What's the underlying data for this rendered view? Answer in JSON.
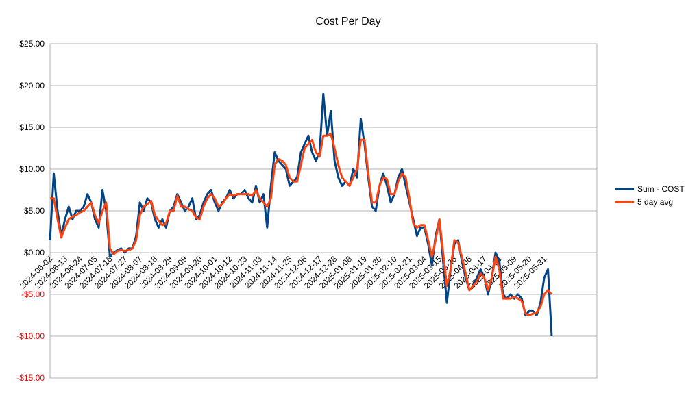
{
  "chart_data": {
    "type": "line",
    "title": "Cost Per Day",
    "categories": [
      "2024-06-02",
      null,
      null,
      null,
      "2024-06-13",
      null,
      null,
      null,
      "2024-06-24",
      null,
      null,
      null,
      "2024-07-05",
      null,
      null,
      null,
      "2024-07-16",
      null,
      null,
      null,
      "2024-07-27",
      null,
      null,
      null,
      "2024-08-07",
      null,
      null,
      null,
      "2024-08-18",
      null,
      null,
      null,
      "2024-08-29",
      null,
      null,
      null,
      "2024-09-09",
      null,
      null,
      null,
      "2024-09-20",
      null,
      null,
      null,
      "2024-10-01",
      null,
      null,
      null,
      "2024-10-12",
      null,
      null,
      null,
      "2024-10-23",
      null,
      null,
      null,
      "2024-11-03",
      null,
      null,
      null,
      "2024-11-14",
      null,
      null,
      null,
      "2024-11-25",
      null,
      null,
      null,
      "2024-12-06",
      null,
      null,
      null,
      "2024-12-17",
      null,
      null,
      null,
      "2024-12-28",
      null,
      null,
      null,
      "2025-01-08",
      null,
      null,
      null,
      "2025-01-19",
      null,
      null,
      null,
      "2025-01-30",
      null,
      null,
      null,
      "2025-02-10",
      null,
      null,
      null,
      "2025-02-21",
      null,
      null,
      null,
      "2025-03-04",
      null,
      null,
      null,
      "2025-03-15",
      null,
      null,
      null,
      "2025-03-26",
      null,
      null,
      null,
      "2025-04-06",
      null,
      null,
      null,
      "2025-04-17",
      null,
      null,
      null,
      "2025-04-28",
      null,
      null,
      null,
      "2025-05-09",
      null,
      null,
      null,
      "2025-05-20",
      null,
      null,
      null,
      "2025-05-31",
      null,
      null
    ],
    "series": [
      {
        "name": "Sum - COST",
        "color": "#004586",
        "width": 3,
        "values": [
          1.5,
          9.5,
          5,
          2,
          4,
          5.5,
          4,
          5,
          5,
          5.5,
          7,
          6,
          4,
          3,
          7.5,
          5,
          -0.5,
          0,
          0.3,
          0.5,
          0,
          0.5,
          0.5,
          2,
          6,
          5,
          6.5,
          6,
          4,
          3,
          4,
          3,
          5,
          5.5,
          7,
          6,
          5,
          5.5,
          6.5,
          4,
          4.5,
          6,
          7,
          7.5,
          6,
          5,
          6,
          6.5,
          7.5,
          6.5,
          7,
          7,
          7.5,
          6.5,
          6,
          8,
          6,
          7,
          3,
          8,
          12,
          11,
          10.5,
          10,
          8,
          8.5,
          9,
          12,
          13,
          14,
          12,
          11,
          12,
          19,
          14,
          17,
          11,
          9,
          8,
          8.5,
          8,
          10,
          9,
          16,
          13,
          9,
          5.5,
          5,
          8,
          9.5,
          8,
          6,
          7,
          9,
          10,
          8,
          6,
          4,
          2,
          3,
          3,
          1,
          -1.5,
          2,
          4,
          -1,
          -6,
          -2,
          1,
          1.5,
          -1,
          -3,
          -4.5,
          -4,
          -3,
          -2,
          -3,
          -5,
          -3,
          0,
          -1,
          -5,
          -5.5,
          -5,
          -5.5,
          -5,
          -5.5,
          -7.5,
          -7,
          -7,
          -7.5,
          -6,
          -3,
          -2,
          -10
        ]
      },
      {
        "name": "5 day avg",
        "color": "#ff420e",
        "width": 3,
        "values": [
          6.5,
          6.5,
          4,
          1.8,
          3,
          4,
          4.3,
          4.5,
          4.8,
          5,
          5.5,
          6,
          4.5,
          3.5,
          5,
          6,
          0.5,
          -0.2,
          0.2,
          0.3,
          0.2,
          0.3,
          0.5,
          1.5,
          4.5,
          5.5,
          5.8,
          6.2,
          4.5,
          3.8,
          3.3,
          3.5,
          5,
          5,
          6.8,
          5.5,
          5.5,
          5.2,
          5,
          4.2,
          4,
          5.5,
          6.5,
          7,
          6.5,
          5.5,
          5.8,
          6.5,
          7,
          6.8,
          7,
          7,
          7,
          7,
          6.8,
          7.5,
          6.5,
          6,
          5.5,
          6.5,
          10.5,
          11.2,
          11,
          10.5,
          9,
          8.5,
          8.5,
          10.5,
          12.5,
          13,
          13.5,
          12,
          11.5,
          14,
          14,
          14.2,
          12.5,
          10.5,
          9,
          8.5,
          8,
          9,
          10,
          13.5,
          13.5,
          9.5,
          6,
          6,
          8,
          9,
          8.8,
          7,
          7,
          8.5,
          9.5,
          9,
          6.5,
          3.5,
          3,
          3.3,
          3.3,
          1.5,
          -0.5,
          1.5,
          4,
          0,
          -4,
          -2,
          1.5,
          1.2,
          -0.5,
          -2.5,
          -4.5,
          -4,
          -3.5,
          -2.5,
          -3,
          -4.5,
          -3,
          -0.5,
          -2,
          -5.5,
          -5.5,
          -5.5,
          -5.3,
          -5.5,
          -5.8,
          -7.3,
          -7.5,
          -7.3,
          -7.2,
          -6.5,
          -5,
          -4.5,
          -5
        ]
      }
    ],
    "ylim": [
      -15,
      25
    ],
    "yticks": [
      {
        "value": -15,
        "label": "-$15.00"
      },
      {
        "value": -10,
        "label": "-$10.00"
      },
      {
        "value": -5,
        "label": "-$5.00"
      },
      {
        "value": 0,
        "label": "$0.00"
      },
      {
        "value": 5,
        "label": "$5.00"
      },
      {
        "value": 10,
        "label": "$10.00"
      },
      {
        "value": 15,
        "label": "$15.00"
      },
      {
        "value": 20,
        "label": "$20.00"
      },
      {
        "value": 25,
        "label": "$25.00"
      }
    ],
    "negative_tick_color": "#ff0000",
    "grid": true,
    "legend": "right"
  }
}
